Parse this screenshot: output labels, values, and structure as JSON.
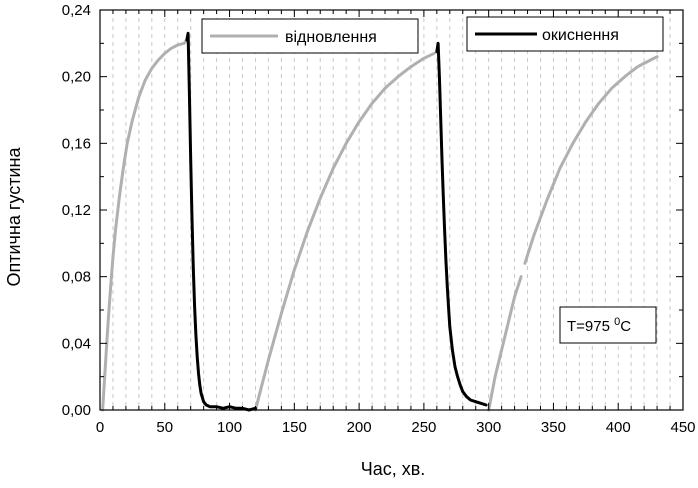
{
  "chart_data": {
    "type": "line",
    "xlabel": "Час, хв.",
    "ylabel": "Оптична густина",
    "xlim": [
      0,
      450
    ],
    "ylim": [
      0,
      0.24
    ],
    "x_ticks": [
      0,
      50,
      100,
      150,
      200,
      250,
      300,
      350,
      400,
      450
    ],
    "x_tick_labels": [
      "0",
      "50",
      "100",
      "150",
      "200",
      "250",
      "300",
      "350",
      "400",
      "450"
    ],
    "y_ticks": [
      0,
      0.04,
      0.08,
      0.12,
      0.16,
      0.2,
      0.24
    ],
    "y_tick_labels": [
      "0,00",
      "0,04",
      "0,08",
      "0,12",
      "0,16",
      "0,20",
      "0,24"
    ],
    "grid": "vertical dashed",
    "legend": [
      {
        "label": "відновлення",
        "color": "#b0b0b0"
      },
      {
        "label": "окиснення",
        "color": "#000000"
      }
    ],
    "annotation": {
      "base": "T=975 ",
      "sup": "0",
      "unit": "C"
    },
    "series": [
      {
        "name": "відновлення",
        "color": "#b0b0b0",
        "segments": [
          {
            "x": [
              2,
              4,
              6,
              8,
              10,
              12,
              15,
              18,
              21,
              25,
              30,
              35,
              40,
              45,
              50,
              55,
              60,
              65,
              67
            ],
            "y": [
              0.0,
              0.025,
              0.05,
              0.072,
              0.092,
              0.108,
              0.128,
              0.145,
              0.16,
              0.174,
              0.188,
              0.198,
              0.205,
              0.21,
              0.214,
              0.217,
              0.219,
              0.22,
              0.222
            ]
          },
          {
            "x": [
              120,
              125,
              130,
              140,
              150,
              160,
              170,
              180,
              190,
              200,
              210,
              220,
              230,
              240,
              250,
              258
            ],
            "y": [
              0.0,
              0.015,
              0.03,
              0.058,
              0.084,
              0.107,
              0.127,
              0.145,
              0.16,
              0.173,
              0.184,
              0.193,
              0.2,
              0.206,
              0.211,
              0.214
            ]
          },
          {
            "x": [
              300,
              305,
              310,
              315,
              320,
              325
            ],
            "y": [
              0.0,
              0.02,
              0.036,
              0.052,
              0.068,
              0.08
            ]
          },
          {
            "x": [
              328,
              335,
              345,
              355,
              365,
              375,
              385,
              395,
              405,
              415,
              425,
              430
            ],
            "y": [
              0.088,
              0.105,
              0.126,
              0.145,
              0.16,
              0.173,
              0.184,
              0.193,
              0.2,
              0.206,
              0.21,
              0.212
            ]
          }
        ]
      },
      {
        "name": "окиснення",
        "color": "#000000",
        "segments": [
          {
            "x": [
              67,
              68,
              69,
              70,
              71,
              72,
              73,
              74,
              75,
              76,
              77,
              78,
              80,
              82,
              85,
              90,
              95,
              100,
              105,
              110,
              115,
              120
            ],
            "y": [
              0.222,
              0.226,
              0.19,
              0.15,
              0.115,
              0.085,
              0.062,
              0.045,
              0.032,
              0.022,
              0.015,
              0.01,
              0.005,
              0.003,
              0.002,
              0.002,
              0.001,
              0.002,
              0.001,
              0.001,
              0.0,
              0.001
            ]
          },
          {
            "x": [
              260,
              261,
              262,
              263,
              264,
              265,
              266,
              267,
              268,
              269,
              270,
              272,
              274,
              276,
              278,
              280,
              283,
              286,
              290,
              294,
              298
            ],
            "y": [
              0.215,
              0.22,
              0.2,
              0.175,
              0.15,
              0.128,
              0.108,
              0.09,
              0.075,
              0.062,
              0.05,
              0.036,
              0.026,
              0.02,
              0.015,
              0.011,
              0.008,
              0.006,
              0.005,
              0.004,
              0.003
            ]
          }
        ]
      }
    ]
  }
}
